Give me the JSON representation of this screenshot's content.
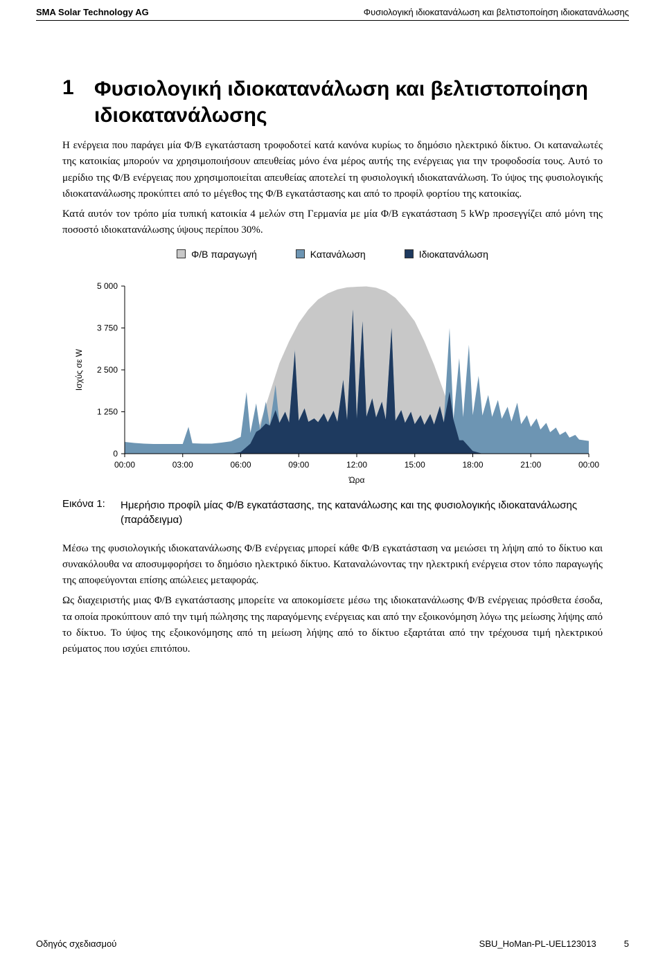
{
  "header": {
    "left": "SMA Solar Technology AG",
    "right": "Φυσιολογική ιδιοκατανάλωση και βελτιστοποίηση ιδιοκατανάλωσης"
  },
  "section": {
    "number": "1",
    "title": "Φυσιολογική ιδιοκατανάλωση και βελτιστοποίηση ιδιοκατανάλωσης"
  },
  "paragraphs": {
    "p1": "Η ενέργεια που παράγει μία Φ/Β εγκατάσταση τροφοδοτεί κατά κανόνα κυρίως το δημόσιο ηλεκτρικό δίκτυο. Οι καταναλωτές της κατοικίας μπορούν να χρησιμοποιήσουν απευθείας μόνο ένα μέρος αυτής της ενέργειας για την τροφοδοσία τους. Αυτό το μερίδιο της Φ/Β ενέργειας που χρησιμοποιείται απευθείας αποτελεί τη φυσιολογική ιδιοκατανάλωση. Το ύψος της φυσιολογικής ιδιοκατανάλωσης προκύπτει από το μέγεθος της Φ/Β εγκατάστασης και από το προφίλ φορτίου της κατοικίας.",
    "p2": "Κατά αυτόν τον τρόπο μία τυπική κατοικία 4 μελών στη Γερμανία με μία Φ/Β εγκατάσταση 5 kWp προσεγγίζει από μόνη της ποσοστό ιδιοκατανάλωσης ύψους περίπου 30%.",
    "p3": "Μέσω της φυσιολογικής ιδιοκατανάλωσης Φ/Β ενέργειας μπορεί κάθε Φ/Β εγκατάσταση να μειώσει τη λήψη από το δίκτυο και συνακόλουθα να αποσυμφορήσει το δημόσιο ηλεκτρικό δίκτυο. Καταναλώνοντας την ηλεκτρική ενέργεια στον τόπο παραγωγής της αποφεύγονται επίσης απώλειες μεταφοράς.",
    "p4": "Ως διαχειριστής μιας Φ/Β εγκατάστασης μπορείτε να αποκομίσετε μέσω της ιδιοκατανάλωσης Φ/Β ενέργειας πρόσθετα έσοδα, τα οποία προκύπτουν από την τιμή πώλησης της παραγόμενης ενέργειας και από την εξοικονόμηση λόγω της μείωσης λήψης από το δίκτυο. Το ύψος της εξοικονόμησης από τη μείωση λήψης από το δίκτυο εξαρτάται από την τρέχουσα τιμή ηλεκτρικού ρεύματος που ισχύει επιτόπου."
  },
  "legend": {
    "pv": "Φ/Β παραγωγή",
    "consumption": "Κατανάλωση",
    "selfcons": "Ιδιοκατανάλωση"
  },
  "chart": {
    "type": "area",
    "ylabel": "Ισχύς σε W",
    "xlabel": "Ώρα",
    "ylim": [
      0,
      5000
    ],
    "ytick_step": 1250,
    "yticks": [
      "0",
      "1 250",
      "2 500",
      "3 750",
      "5 000"
    ],
    "xticks": [
      "00:00",
      "03:00",
      "06:00",
      "09:00",
      "12:00",
      "15:00",
      "18:00",
      "21:00",
      "00:00"
    ],
    "colors": {
      "pv": "#c8c8c8",
      "consumption": "#6d95b3",
      "selfcons": "#1e3a5f",
      "axis": "#000000",
      "background": "#ffffff"
    },
    "label_fontsize": 12,
    "series": {
      "pv": [
        [
          0,
          0
        ],
        [
          5.5,
          0
        ],
        [
          6.0,
          50
        ],
        [
          6.5,
          300
        ],
        [
          7.0,
          900
        ],
        [
          7.5,
          1800
        ],
        [
          8.0,
          2700
        ],
        [
          8.5,
          3350
        ],
        [
          9.0,
          3900
        ],
        [
          9.5,
          4300
        ],
        [
          10.0,
          4600
        ],
        [
          10.5,
          4780
        ],
        [
          11.0,
          4900
        ],
        [
          11.5,
          4960
        ],
        [
          12.0,
          4980
        ],
        [
          12.5,
          4990
        ],
        [
          13.0,
          4950
        ],
        [
          13.5,
          4850
        ],
        [
          14.0,
          4650
        ],
        [
          14.5,
          4330
        ],
        [
          15.0,
          3950
        ],
        [
          15.5,
          3350
        ],
        [
          16.0,
          2650
        ],
        [
          16.5,
          1850
        ],
        [
          17.0,
          1050
        ],
        [
          17.5,
          400
        ],
        [
          18.0,
          80
        ],
        [
          18.5,
          0
        ],
        [
          24,
          0
        ]
      ],
      "consumption": [
        [
          0,
          350
        ],
        [
          0.5,
          320
        ],
        [
          1,
          300
        ],
        [
          1.5,
          290
        ],
        [
          2,
          290
        ],
        [
          2.5,
          290
        ],
        [
          3,
          290
        ],
        [
          3.3,
          800
        ],
        [
          3.5,
          310
        ],
        [
          4,
          300
        ],
        [
          4.5,
          300
        ],
        [
          5,
          330
        ],
        [
          5.5,
          370
        ],
        [
          6,
          500
        ],
        [
          6.3,
          1840
        ],
        [
          6.5,
          620
        ],
        [
          6.8,
          1500
        ],
        [
          7,
          720
        ],
        [
          7.3,
          1550
        ],
        [
          7.5,
          840
        ],
        [
          7.8,
          2050
        ],
        [
          8,
          920
        ],
        [
          8.3,
          1250
        ],
        [
          8.5,
          930
        ],
        [
          8.8,
          3100
        ],
        [
          9,
          980
        ],
        [
          9.3,
          1350
        ],
        [
          9.5,
          950
        ],
        [
          9.8,
          1050
        ],
        [
          10,
          940
        ],
        [
          10.3,
          1200
        ],
        [
          10.5,
          940
        ],
        [
          10.8,
          1280
        ],
        [
          11,
          950
        ],
        [
          11.3,
          2200
        ],
        [
          11.5,
          1000
        ],
        [
          11.8,
          4300
        ],
        [
          12,
          1040
        ],
        [
          12.3,
          3950
        ],
        [
          12.5,
          1100
        ],
        [
          12.8,
          1650
        ],
        [
          13,
          1080
        ],
        [
          13.3,
          1550
        ],
        [
          13.5,
          1020
        ],
        [
          13.8,
          3750
        ],
        [
          14,
          980
        ],
        [
          14.3,
          1300
        ],
        [
          14.5,
          920
        ],
        [
          14.8,
          1250
        ],
        [
          15,
          880
        ],
        [
          15.3,
          1150
        ],
        [
          15.5,
          860
        ],
        [
          15.8,
          1180
        ],
        [
          16,
          870
        ],
        [
          16.3,
          1420
        ],
        [
          16.5,
          930
        ],
        [
          16.8,
          3750
        ],
        [
          17,
          1020
        ],
        [
          17.3,
          2850
        ],
        [
          17.5,
          1090
        ],
        [
          17.8,
          3250
        ],
        [
          18,
          1150
        ],
        [
          18.3,
          2320
        ],
        [
          18.5,
          1140
        ],
        [
          18.8,
          1750
        ],
        [
          19,
          1100
        ],
        [
          19.3,
          1600
        ],
        [
          19.5,
          1040
        ],
        [
          19.8,
          1400
        ],
        [
          20,
          960
        ],
        [
          20.3,
          1520
        ],
        [
          20.5,
          880
        ],
        [
          20.8,
          1150
        ],
        [
          21,
          800
        ],
        [
          21.3,
          1050
        ],
        [
          21.5,
          720
        ],
        [
          21.8,
          920
        ],
        [
          22,
          640
        ],
        [
          22.3,
          780
        ],
        [
          22.5,
          560
        ],
        [
          22.8,
          660
        ],
        [
          23,
          480
        ],
        [
          23.3,
          560
        ],
        [
          23.5,
          420
        ],
        [
          24,
          380
        ]
      ],
      "selfcons": [
        [
          0,
          0
        ],
        [
          5.5,
          0
        ],
        [
          6.0,
          50
        ],
        [
          6.3,
          200
        ],
        [
          6.5,
          300
        ],
        [
          6.8,
          650
        ],
        [
          7,
          720
        ],
        [
          7.3,
          900
        ],
        [
          7.5,
          840
        ],
        [
          7.8,
          1300
        ],
        [
          8,
          920
        ],
        [
          8.3,
          1250
        ],
        [
          8.5,
          930
        ],
        [
          8.8,
          3050
        ],
        [
          9,
          980
        ],
        [
          9.3,
          1350
        ],
        [
          9.5,
          950
        ],
        [
          9.8,
          1050
        ],
        [
          10,
          940
        ],
        [
          10.3,
          1200
        ],
        [
          10.5,
          940
        ],
        [
          10.8,
          1280
        ],
        [
          11,
          950
        ],
        [
          11.3,
          2200
        ],
        [
          11.5,
          1000
        ],
        [
          11.8,
          4300
        ],
        [
          12,
          1040
        ],
        [
          12.3,
          3950
        ],
        [
          12.5,
          1100
        ],
        [
          12.8,
          1650
        ],
        [
          13,
          1080
        ],
        [
          13.3,
          1550
        ],
        [
          13.5,
          1020
        ],
        [
          13.8,
          3750
        ],
        [
          14,
          980
        ],
        [
          14.3,
          1300
        ],
        [
          14.5,
          920
        ],
        [
          14.8,
          1250
        ],
        [
          15,
          880
        ],
        [
          15.3,
          1150
        ],
        [
          15.5,
          860
        ],
        [
          15.8,
          1180
        ],
        [
          16,
          870
        ],
        [
          16.3,
          1420
        ],
        [
          16.5,
          930
        ],
        [
          16.8,
          1850
        ],
        [
          17,
          1020
        ],
        [
          17.3,
          400
        ],
        [
          17.5,
          400
        ],
        [
          18,
          80
        ],
        [
          18.5,
          0
        ],
        [
          24,
          0
        ]
      ]
    }
  },
  "figure": {
    "label": "Εικόνα 1:",
    "caption": "Ημερήσιο προφίλ μίας Φ/Β εγκατάστασης, της κατανάλωσης και της φυσιολογικής ιδιοκατανάλωσης (παράδειγμα)"
  },
  "footer": {
    "left": "Οδηγός σχεδιασμού",
    "doc_id": "SBU_HoMan-PL-UEL123013",
    "page": "5"
  }
}
